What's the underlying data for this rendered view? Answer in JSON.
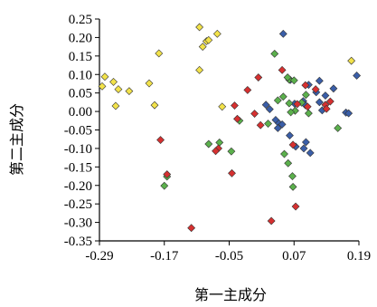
{
  "chart_data": {
    "type": "scatter",
    "xlabel": "第一主成分",
    "ylabel": "第二主成分",
    "xlim": [
      -0.29,
      0.19
    ],
    "ylim": [
      -0.35,
      0.25
    ],
    "x_ticks": [
      "-0.29",
      "-0.17",
      "-0.05",
      "0.07",
      "0.19"
    ],
    "x_tick_values": [
      -0.29,
      -0.17,
      -0.05,
      0.07,
      0.19
    ],
    "y_ticks": [
      "0.25",
      "0.20",
      "0.15",
      "0.10",
      "0.05",
      "0.00",
      "-0.05",
      "-0.10",
      "-0.15",
      "-0.20",
      "-0.25",
      "-0.30",
      "-0.35"
    ],
    "y_tick_values": [
      0.25,
      0.2,
      0.15,
      0.1,
      0.05,
      0.0,
      -0.05,
      -0.1,
      -0.15,
      -0.2,
      -0.25,
      -0.3,
      -0.35
    ],
    "grid": false,
    "marker": "diamond",
    "series": [
      {
        "color": "#f2e24a",
        "points": [
          [
            -0.105,
            0.228
          ],
          [
            -0.092,
            0.19
          ],
          [
            -0.088,
            0.193
          ],
          [
            -0.099,
            0.175
          ],
          [
            -0.072,
            0.21
          ],
          [
            -0.18,
            0.157
          ],
          [
            -0.105,
            0.112
          ],
          [
            -0.28,
            0.094
          ],
          [
            -0.264,
            0.08
          ],
          [
            -0.285,
            0.068
          ],
          [
            -0.255,
            0.06
          ],
          [
            -0.235,
            0.055
          ],
          [
            -0.198,
            0.076
          ],
          [
            -0.26,
            0.015
          ],
          [
            -0.188,
            0.017
          ],
          [
            -0.063,
            0.013
          ],
          [
            0.176,
            0.137
          ]
        ]
      },
      {
        "color": "#3a5ea8",
        "points": [
          [
            0.05,
            0.21
          ],
          [
            0.063,
            0.085
          ],
          [
            0.097,
            0.072
          ],
          [
            0.117,
            0.083
          ],
          [
            0.111,
            0.052
          ],
          [
            0.143,
            0.062
          ],
          [
            0.186,
            0.097
          ],
          [
            0.128,
            0.043
          ],
          [
            0.087,
            0.028
          ],
          [
            0.091,
            0.017
          ],
          [
            0.117,
            0.025
          ],
          [
            0.122,
            0.003
          ],
          [
            0.166,
            -0.003
          ],
          [
            0.171,
            -0.005
          ],
          [
            0.018,
            0.018
          ],
          [
            0.025,
            0.006
          ],
          [
            0.036,
            -0.023
          ],
          [
            0.042,
            -0.032
          ],
          [
            0.04,
            -0.045
          ],
          [
            0.048,
            -0.035
          ],
          [
            0.062,
            -0.065
          ],
          [
            0.073,
            -0.095
          ],
          [
            0.092,
            -0.083
          ],
          [
            0.088,
            -0.1
          ],
          [
            0.1,
            -0.112
          ],
          [
            0.071,
            0.021
          ]
        ]
      },
      {
        "color": "#5bb04c",
        "points": [
          [
            0.034,
            0.156
          ],
          [
            0.061,
            0.086
          ],
          [
            0.058,
            0.092
          ],
          [
            0.07,
            0.084
          ],
          [
            0.05,
            0.04
          ],
          [
            0.04,
            0.03
          ],
          [
            0.092,
            0.045
          ],
          [
            0.061,
            0.022
          ],
          [
            0.084,
            0.024
          ],
          [
            0.097,
            -0.005
          ],
          [
            0.072,
            0.002
          ],
          [
            0.064,
            -0.002
          ],
          [
            0.022,
            -0.033
          ],
          [
            -0.031,
            -0.025
          ],
          [
            0.151,
            -0.045
          ],
          [
            -0.068,
            -0.084
          ],
          [
            -0.088,
            -0.088
          ],
          [
            0.059,
            -0.14
          ],
          [
            0.067,
            -0.175
          ],
          [
            0.068,
            -0.204
          ],
          [
            -0.17,
            -0.201
          ],
          [
            -0.165,
            -0.176
          ],
          [
            -0.046,
            -0.108
          ],
          [
            0.052,
            -0.115
          ]
        ]
      },
      {
        "color": "#d63030",
        "points": [
          [
            0.004,
            0.092
          ],
          [
            0.048,
            0.112
          ],
          [
            0.091,
            0.071
          ],
          [
            0.11,
            0.06
          ],
          [
            -0.016,
            0.058
          ],
          [
            0.137,
            0.027
          ],
          [
            0.076,
            0.02
          ],
          [
            0.095,
            0.013
          ],
          [
            0.128,
            0.018
          ],
          [
            0.13,
            0.007
          ],
          [
            -0.04,
            0.016
          ],
          [
            -0.003,
            -0.006
          ],
          [
            -0.035,
            -0.02
          ],
          [
            0.008,
            -0.037
          ],
          [
            -0.177,
            -0.077
          ],
          [
            0.068,
            -0.09
          ],
          [
            -0.07,
            -0.1
          ],
          [
            -0.075,
            -0.107
          ],
          [
            -0.045,
            -0.167
          ],
          [
            -0.165,
            -0.17
          ],
          [
            0.073,
            -0.257
          ],
          [
            0.028,
            -0.296
          ],
          [
            -0.12,
            -0.315
          ]
        ]
      }
    ]
  }
}
